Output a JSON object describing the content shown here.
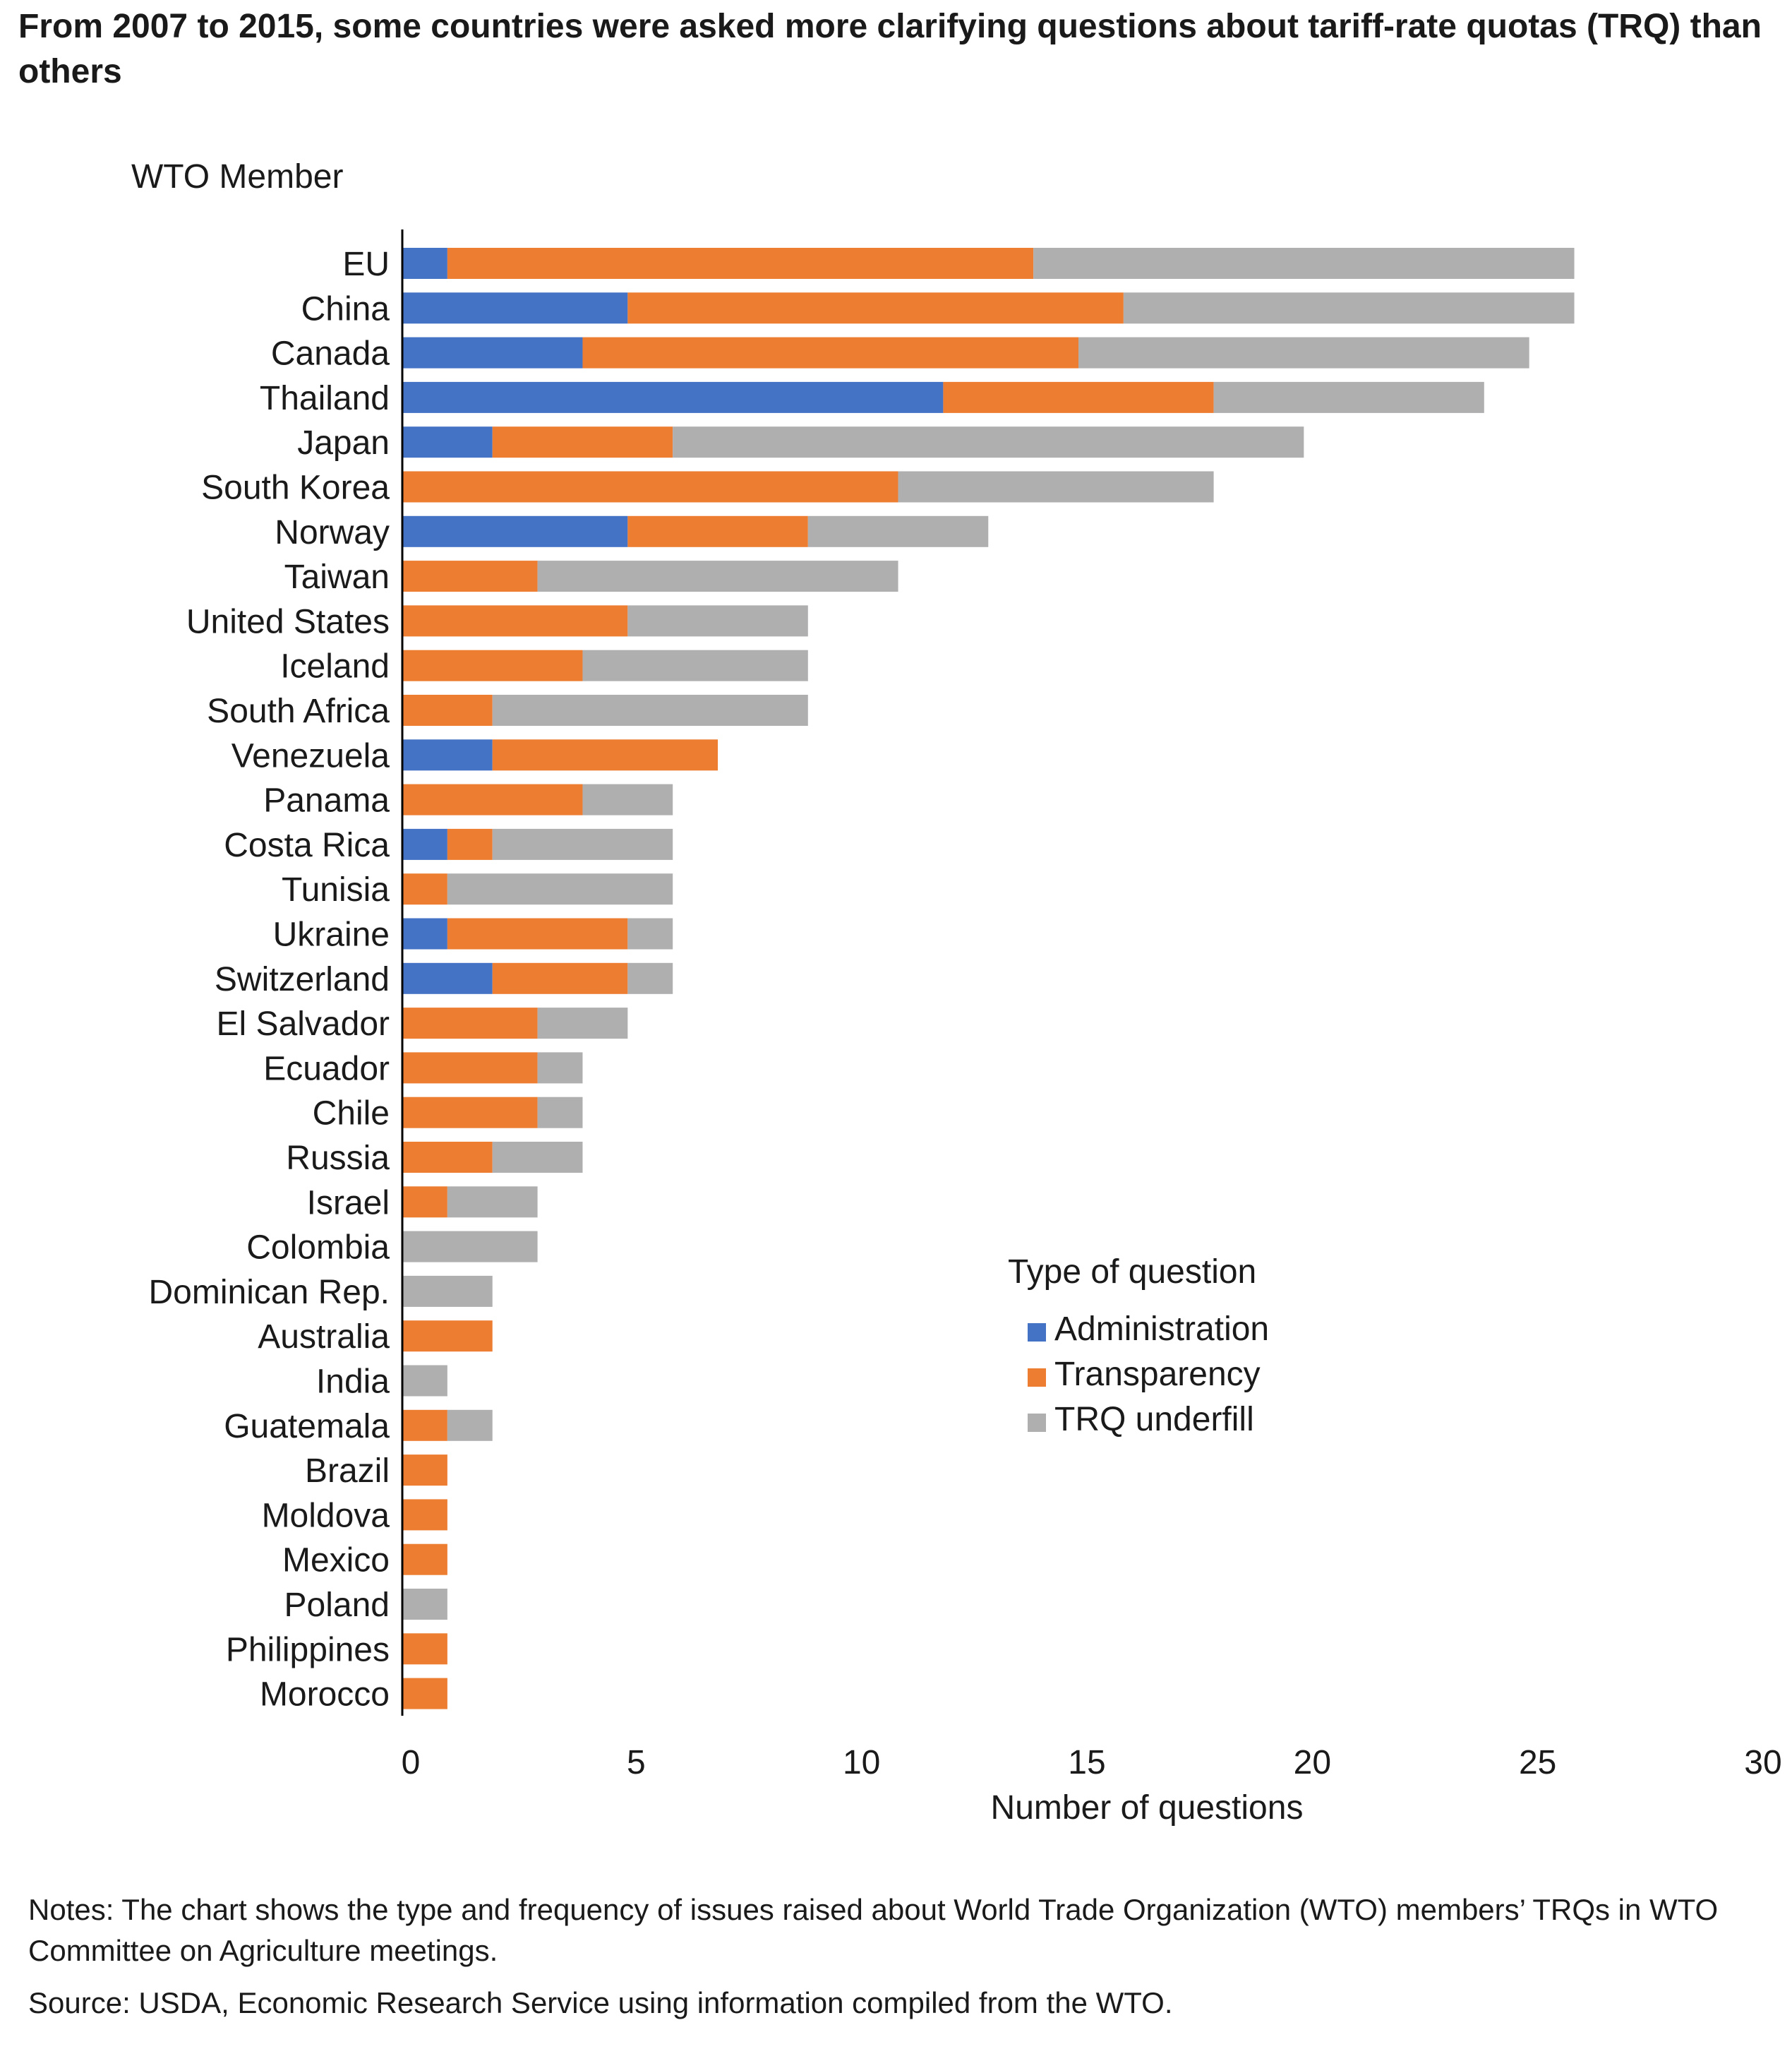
{
  "title": "From 2007 to 2015, some countries were asked more clarifying questions about tariff-rate quotas (TRQ) than others",
  "notes": "Notes: The chart shows the type and frequency of issues raised about World Trade Organization (WTO) members’ TRQs in WTO Committee on Agriculture meetings.",
  "source": "Source: USDA, Economic Research Service using information compiled from the WTO.",
  "colors": {
    "Administration": "#4472c4",
    "Transparency": "#ed7d31",
    "TRQ underfill": "#afafb0"
  },
  "chart_data": {
    "type": "bar",
    "orientation": "horizontal",
    "stacked": true,
    "ylabel": "WTO Member",
    "xlabel": "Number of questions",
    "xlim": [
      0,
      30
    ],
    "xticks": [
      0,
      5,
      10,
      15,
      20,
      25,
      30
    ],
    "legend_title": "Type of question",
    "legend_position": "right",
    "grid": false,
    "categories": [
      "EU",
      "China",
      "Canada",
      "Thailand",
      "Japan",
      "South Korea",
      "Norway",
      "Taiwan",
      "United States",
      "Iceland",
      "South Africa",
      "Venezuela",
      "Panama",
      "Costa Rica",
      "Tunisia",
      "Ukraine",
      "Switzerland",
      "El Salvador",
      "Ecuador",
      "Chile",
      "Russia",
      "Israel",
      "Colombia",
      "Dominican Rep.",
      "Australia",
      "India",
      "Guatemala",
      "Brazil",
      "Moldova",
      "Mexico",
      "Poland",
      "Philippines",
      "Morocco"
    ],
    "series": [
      {
        "name": "Administration",
        "values": [
          1,
          5,
          4,
          12,
          2,
          0,
          5,
          0,
          0,
          0,
          0,
          2,
          0,
          1,
          0,
          1,
          2,
          0,
          0,
          0,
          0,
          0,
          0,
          0,
          0,
          0,
          0,
          0,
          0,
          0,
          0,
          0,
          0
        ]
      },
      {
        "name": "Transparency",
        "values": [
          13,
          11,
          11,
          6,
          4,
          11,
          4,
          3,
          5,
          4,
          2,
          5,
          4,
          1,
          1,
          4,
          3,
          3,
          3,
          3,
          2,
          1,
          0,
          0,
          2,
          0,
          1,
          1,
          1,
          1,
          0,
          1,
          1
        ]
      },
      {
        "name": "TRQ underfill",
        "values": [
          12,
          10,
          10,
          6,
          14,
          7,
          4,
          8,
          4,
          5,
          7,
          0,
          2,
          4,
          5,
          1,
          1,
          2,
          1,
          1,
          2,
          2,
          3,
          2,
          0,
          1,
          1,
          0,
          0,
          0,
          1,
          0,
          0
        ]
      }
    ]
  }
}
